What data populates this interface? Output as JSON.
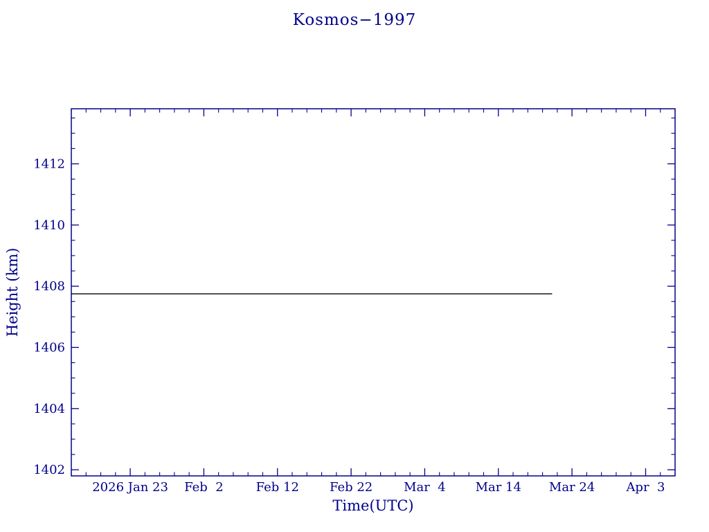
{
  "page": {
    "title": "Kosmos−1997"
  },
  "colors": {
    "axis": "#00008b",
    "series_line": "#000000",
    "background": "#ffffff"
  },
  "chart_data": {
    "type": "line",
    "title": "Kosmos−1997",
    "xlabel": "Time(UTC)",
    "ylabel": "Height (km)",
    "x_unit": "days since 2026 Jan 15 (UTC)",
    "x_domain": [
      0,
      82
    ],
    "ylim": [
      1401.8,
      1413.8
    ],
    "x_ticks": [
      {
        "pos": 8,
        "label": "2026 Jan 23"
      },
      {
        "pos": 18,
        "label": "Feb  2"
      },
      {
        "pos": 28,
        "label": "Feb 12"
      },
      {
        "pos": 38,
        "label": "Feb 22"
      },
      {
        "pos": 48,
        "label": "Mar  4"
      },
      {
        "pos": 58,
        "label": "Mar 14"
      },
      {
        "pos": 68,
        "label": "Mar 24"
      },
      {
        "pos": 78,
        "label": "Apr  3"
      }
    ],
    "x_minor_step": 2,
    "y_ticks": [
      {
        "pos": 1402,
        "label": "1402"
      },
      {
        "pos": 1404,
        "label": "1404"
      },
      {
        "pos": 1406,
        "label": "1406"
      },
      {
        "pos": 1408,
        "label": "1408"
      },
      {
        "pos": 1410,
        "label": "1410"
      },
      {
        "pos": 1412,
        "label": "1412"
      }
    ],
    "y_minor_step": 0.5,
    "series": [
      {
        "name": "height",
        "color": "#000000",
        "points": [
          [
            0,
            1407.75
          ],
          [
            65.3,
            1407.75
          ]
        ]
      }
    ],
    "grid": false,
    "legend": "none"
  }
}
